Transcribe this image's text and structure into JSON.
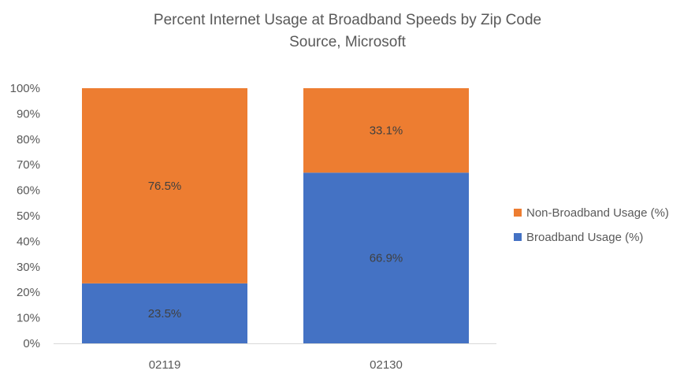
{
  "chart_data": {
    "type": "bar",
    "stacked": true,
    "title": "Percent Internet Usage at Broadband Speeds by Zip Code",
    "subtitle": "Source, Microsoft",
    "categories": [
      "02119",
      "02130"
    ],
    "series": [
      {
        "name": "Broadband Usage (%)",
        "color": "#4472C4",
        "values": [
          23.5,
          66.9
        ],
        "labels": [
          "23.5%",
          "66.9%"
        ]
      },
      {
        "name": "Non-Broadband Usage (%)",
        "color": "#ED7D31",
        "values": [
          76.5,
          33.1
        ],
        "labels": [
          "76.5%",
          "33.1%"
        ]
      }
    ],
    "yticks": [
      "0%",
      "10%",
      "20%",
      "30%",
      "40%",
      "50%",
      "60%",
      "70%",
      "80%",
      "90%",
      "100%"
    ],
    "ylim": [
      0,
      100
    ],
    "legend_position": "right",
    "legend_order": [
      "Non-Broadband Usage (%)",
      "Broadband Usage (%)"
    ],
    "grid": false
  }
}
